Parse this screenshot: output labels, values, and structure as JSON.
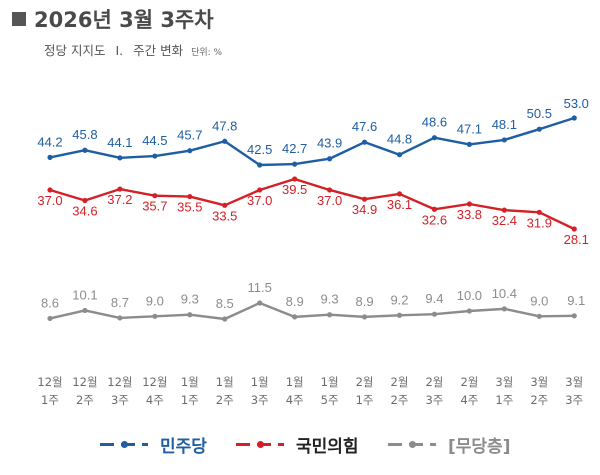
{
  "header": {
    "title": "2026년 3월 3주차",
    "subtitle_main": "정당 지지도",
    "subtitle_sep": "Ⅰ.",
    "subtitle_desc": "주간 변화",
    "unit": "단위: %"
  },
  "legend": {
    "minju": "민주당",
    "kukmin": "국민의힘",
    "nonpartisan": "[무당층]"
  },
  "colors": {
    "minju": "#1f5ea3",
    "kukmin": "#d32128",
    "nonpartisan": "#8c8c8c"
  },
  "chart_data": {
    "type": "line",
    "categories": [
      [
        "12월",
        "1주"
      ],
      [
        "12월",
        "2주"
      ],
      [
        "12월",
        "3주"
      ],
      [
        "12월",
        "4주"
      ],
      [
        "1월",
        "1주"
      ],
      [
        "1월",
        "2주"
      ],
      [
        "1월",
        "3주"
      ],
      [
        "1월",
        "4주"
      ],
      [
        "1월",
        "5주"
      ],
      [
        "2월",
        "1주"
      ],
      [
        "2월",
        "2주"
      ],
      [
        "2월",
        "3주"
      ],
      [
        "2월",
        "4주"
      ],
      [
        "3월",
        "1주"
      ],
      [
        "3월",
        "2주"
      ],
      [
        "3월",
        "3주"
      ]
    ],
    "series": [
      {
        "name": "민주당",
        "key": "minju",
        "values": [
          44.2,
          45.8,
          44.1,
          44.5,
          45.7,
          47.8,
          42.5,
          42.7,
          43.9,
          47.6,
          44.8,
          48.6,
          47.1,
          48.1,
          50.5,
          53.0
        ],
        "labels": [
          "44.2",
          "45.8",
          "44.1",
          "44.5",
          "45.7",
          "47.8",
          "42.5",
          "42.7",
          "43.9",
          "47.6",
          "44.8",
          "48.6",
          "47.1",
          "48.1",
          "50.5",
          "53.0"
        ]
      },
      {
        "name": "국민의힘",
        "key": "kukmin",
        "values": [
          37.0,
          34.6,
          37.2,
          35.7,
          35.5,
          33.5,
          37.0,
          39.5,
          37.0,
          34.9,
          36.1,
          32.6,
          33.8,
          32.4,
          31.9,
          28.1
        ],
        "labels": [
          "37.0",
          "34.6",
          "37.2",
          "35.7",
          "35.5",
          "33.5",
          "37.0",
          "39.5",
          "37.0",
          "34.9",
          "36.1",
          "32.6",
          "33.8",
          "32.4",
          "31.9",
          "28.1"
        ]
      },
      {
        "name": "[무당층]",
        "key": "nonpartisan",
        "values": [
          8.6,
          10.1,
          8.7,
          9.0,
          9.3,
          8.5,
          11.5,
          8.9,
          9.3,
          8.9,
          9.2,
          9.4,
          10.0,
          10.4,
          9.0,
          9.1
        ],
        "labels": [
          "8.6",
          "10.1",
          "8.7",
          "9.0",
          "9.3",
          "8.5",
          "11.5",
          "8.9",
          "9.3",
          "8.9",
          "9.2",
          "9.4",
          "10.0",
          "10.4",
          "9.0",
          "9.1"
        ]
      }
    ]
  }
}
